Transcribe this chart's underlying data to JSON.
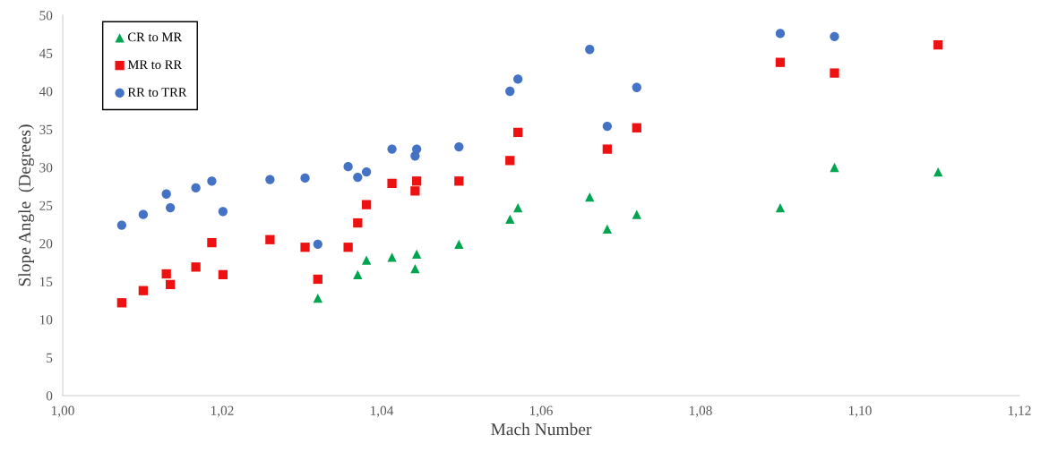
{
  "chart_data": {
    "type": "scatter",
    "xlabel": "Mach Number",
    "ylabel": "Slope Angle  (Degrees)",
    "xlim": [
      1.0,
      1.12
    ],
    "xticks": [
      {
        "value": 1.0,
        "label": "1,00"
      },
      {
        "value": 1.02,
        "label": "1,02"
      },
      {
        "value": 1.04,
        "label": "1,04"
      },
      {
        "value": 1.06,
        "label": "1,06"
      },
      {
        "value": 1.08,
        "label": "1,08"
      },
      {
        "value": 1.1,
        "label": "1,10"
      },
      {
        "value": 1.12,
        "label": "1,12"
      }
    ],
    "ylim": [
      0,
      50
    ],
    "yticks": [
      0,
      5,
      10,
      15,
      20,
      25,
      30,
      35,
      40,
      45,
      50
    ],
    "grid": false,
    "legend": "top left",
    "series": [
      {
        "name": "CR to MR",
        "color": "#00a550",
        "marker": "triangle",
        "x": [
          1.032,
          1.037,
          1.0381,
          1.0413,
          1.0442,
          1.0444,
          1.0497,
          1.0561,
          1.0571,
          1.0661,
          1.0683,
          1.072,
          1.09,
          1.0968,
          1.1098
        ],
        "values": [
          12.8,
          15.9,
          17.8,
          18.2,
          16.7,
          18.6,
          19.9,
          23.2,
          24.7,
          26.1,
          21.9,
          23.8,
          24.7,
          30.0,
          29.4
        ]
      },
      {
        "name": "MR to RR",
        "color": "#ee1111",
        "marker": "square",
        "x": [
          1.0074,
          1.0101,
          1.013,
          1.0135,
          1.0167,
          1.0187,
          1.0201,
          1.026,
          1.0304,
          1.032,
          1.0358,
          1.037,
          1.0381,
          1.0413,
          1.0442,
          1.0444,
          1.0497,
          1.0561,
          1.0571,
          1.0683,
          1.072,
          1.09,
          1.0968,
          1.1098
        ],
        "values": [
          12.2,
          13.8,
          16.0,
          14.6,
          16.9,
          20.1,
          15.9,
          20.5,
          19.5,
          15.3,
          19.5,
          22.7,
          25.1,
          27.9,
          26.9,
          28.2,
          28.2,
          30.9,
          34.6,
          32.4,
          35.2,
          43.8,
          42.4,
          46.1
        ]
      },
      {
        "name": "RR to TRR",
        "color": "#4472c4",
        "marker": "circle",
        "x": [
          1.0074,
          1.0101,
          1.013,
          1.0135,
          1.0167,
          1.0187,
          1.0201,
          1.026,
          1.0304,
          1.032,
          1.0358,
          1.037,
          1.0381,
          1.0413,
          1.0442,
          1.0444,
          1.0497,
          1.0561,
          1.0571,
          1.0661,
          1.0683,
          1.072,
          1.09,
          1.0968
        ],
        "values": [
          22.4,
          23.8,
          26.5,
          24.7,
          27.3,
          28.2,
          24.2,
          28.4,
          28.6,
          19.9,
          30.1,
          28.7,
          29.4,
          32.4,
          31.5,
          32.4,
          32.7,
          40.0,
          41.6,
          45.5,
          35.4,
          40.5,
          47.6,
          47.2
        ]
      }
    ]
  }
}
